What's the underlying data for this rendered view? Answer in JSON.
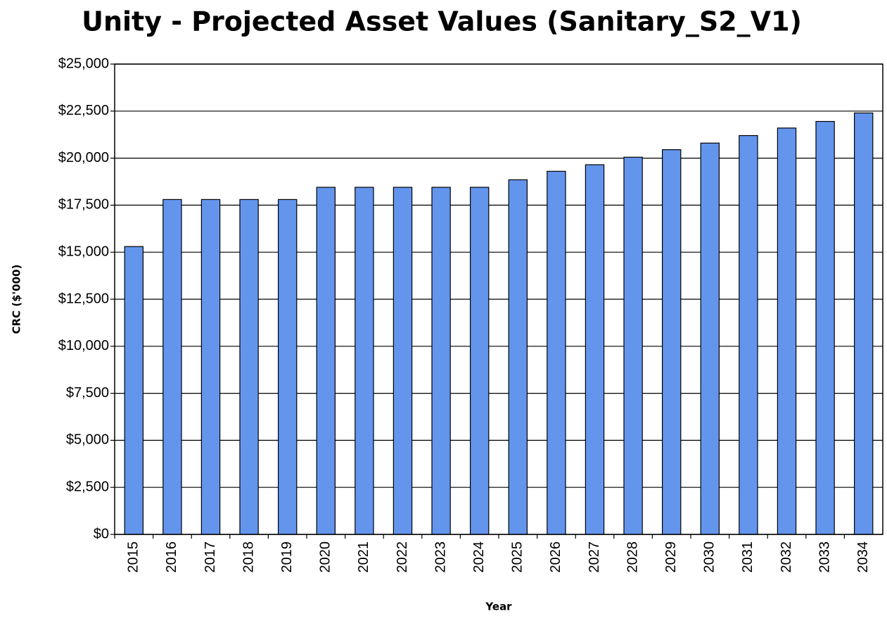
{
  "chart_data": {
    "type": "bar",
    "title": "Unity - Projected Asset Values (Sanitary_S2_V1)",
    "y_label": "CRC ($'000)",
    "x_label": "Year",
    "categories": [
      "2015",
      "2016",
      "2017",
      "2018",
      "2019",
      "2020",
      "2021",
      "2022",
      "2023",
      "2024",
      "2025",
      "2026",
      "2027",
      "2028",
      "2029",
      "2030",
      "2031",
      "2032",
      "2033",
      "2034"
    ],
    "values": [
      15300,
      17800,
      17800,
      17800,
      17800,
      18450,
      18450,
      18450,
      18450,
      18450,
      18850,
      19300,
      19650,
      20050,
      20450,
      20800,
      21200,
      21600,
      21950,
      22400
    ],
    "color": "#6495ed",
    "ylim": [
      0,
      25000
    ],
    "yticks": [
      {
        "value": 0,
        "label": "$0"
      },
      {
        "value": 2500,
        "label": "$2,500"
      },
      {
        "value": 5000,
        "label": "$5,000"
      },
      {
        "value": 7500,
        "label": "$7,500"
      },
      {
        "value": 10000,
        "label": "$10,000"
      },
      {
        "value": 12500,
        "label": "$12,500"
      },
      {
        "value": 15000,
        "label": "$15,000"
      },
      {
        "value": 17500,
        "label": "$17,500"
      },
      {
        "value": 20000,
        "label": "$20,000"
      },
      {
        "value": 22500,
        "label": "$22,500"
      },
      {
        "value": 25000,
        "label": "$25,000"
      }
    ],
    "grid": true
  }
}
